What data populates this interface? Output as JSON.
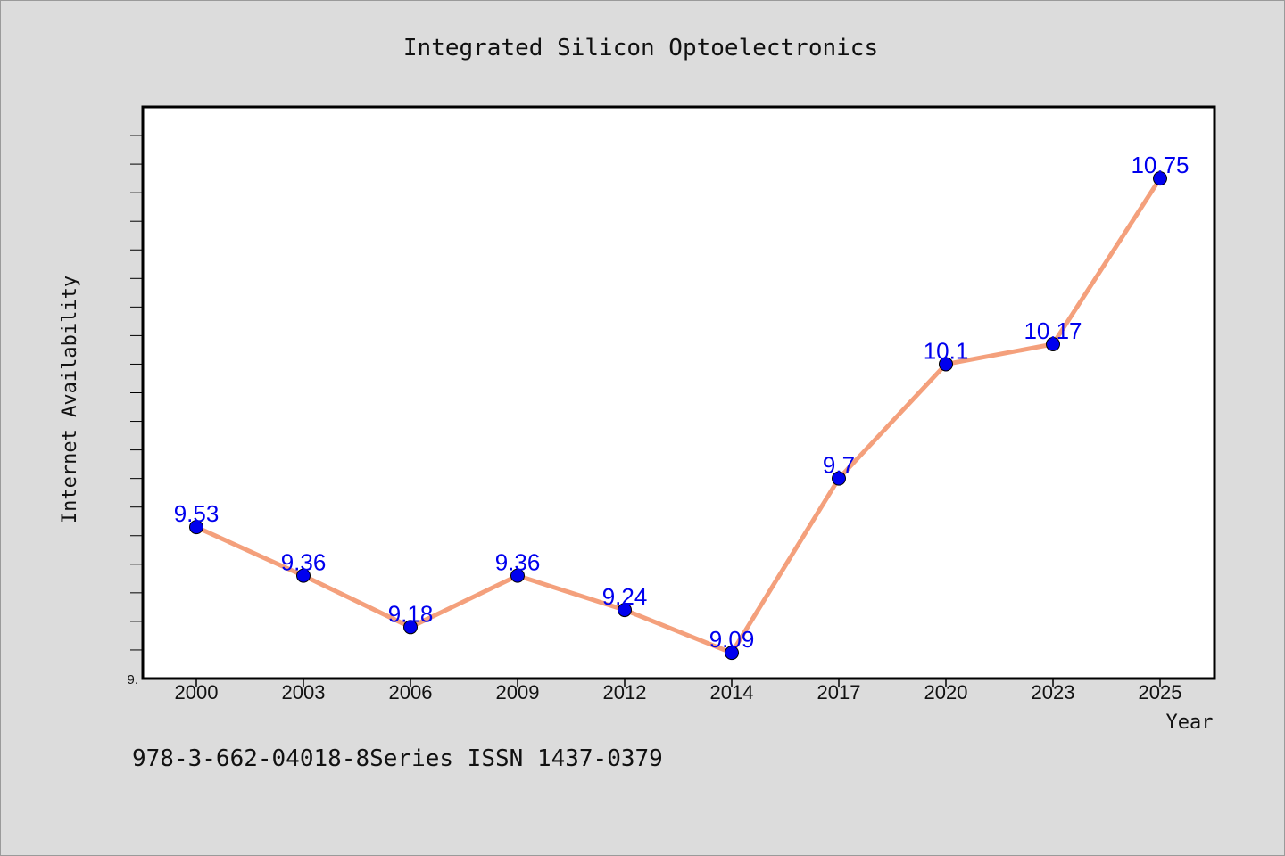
{
  "chart_data": {
    "type": "line",
    "title": "Integrated Silicon Optoelectronics",
    "xlabel": "Year",
    "ylabel": "Internet Availability",
    "categories": [
      "2000",
      "2003",
      "2006",
      "2009",
      "2012",
      "2014",
      "2017",
      "2020",
      "2023",
      "2025"
    ],
    "series": [
      {
        "values": [
          9.53,
          9.36,
          9.18,
          9.36,
          9.24,
          9.09,
          9.7,
          10.1,
          10.17,
          10.75
        ],
        "data_labels": [
          "9.53",
          "9.36",
          "9.18",
          "9.36",
          "9.24",
          "9.09",
          "9.7",
          "10.1",
          "10.17",
          "10.75"
        ],
        "line_color": "#f4a07c",
        "marker_color": "#0000ee"
      }
    ],
    "ylim": [
      9.0,
      11.0
    ],
    "y_tick_labels": [
      "9."
    ],
    "grid": false,
    "legend": false,
    "plot_background": "#ffffff",
    "figure_background": "#dcdcdc"
  },
  "footnote": "978-3-662-04018-8Series ISSN 1437-0379"
}
